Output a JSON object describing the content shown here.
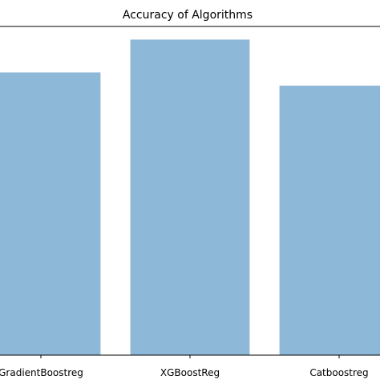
{
  "chart_data": {
    "type": "bar",
    "title": "Accuracy of Algorithms",
    "categories": [
      "GradientBoostreg",
      "XGBoostReg",
      "Catboostreg"
    ],
    "values": [
      0.86,
      0.96,
      0.82
    ],
    "ylim": [
      0,
      1
    ],
    "xlabel": "",
    "ylabel": "",
    "grid": false,
    "bar_color": "#8db8d8",
    "axis_color": "#000000"
  }
}
